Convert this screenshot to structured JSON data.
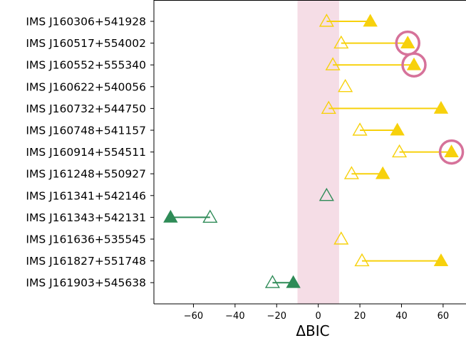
{
  "chart_data": {
    "type": "scatter",
    "title": "",
    "xlabel": "ΔBIC",
    "ylabel": "",
    "xlim": [
      -79,
      71
    ],
    "xticks": [
      -60,
      -40,
      -20,
      0,
      20,
      40,
      60
    ],
    "xtick_labels": [
      "−60",
      "−40",
      "−20",
      "0",
      "20",
      "40",
      "60"
    ],
    "shaded_band": {
      "x_start": -10,
      "x_end": 10,
      "color": "#f5dde6"
    },
    "colors": {
      "yellow": "#f7d10c",
      "green": "#2e8b57",
      "circle": "#d6729a"
    },
    "legend": "none",
    "grid": false,
    "rows": [
      {
        "label": "IMS J160306+541928",
        "open": 4,
        "filled": 25,
        "color": "yellow",
        "circled": false
      },
      {
        "label": "IMS J160517+554002",
        "open": 11,
        "filled": 43,
        "color": "yellow",
        "circled": true
      },
      {
        "label": "IMS J160552+555340",
        "open": 7,
        "filled": 46,
        "color": "yellow",
        "circled": true
      },
      {
        "label": "IMS J160622+540056",
        "open": 13,
        "filled": null,
        "color": "yellow",
        "circled": false
      },
      {
        "label": "IMS J160732+544750",
        "open": 5,
        "filled": 59,
        "color": "yellow",
        "circled": false
      },
      {
        "label": "IMS J160748+541157",
        "open": 20,
        "filled": 38,
        "color": "yellow",
        "circled": false
      },
      {
        "label": "IMS J160914+554511",
        "open": 39,
        "filled": 64,
        "color": "yellow",
        "circled": true
      },
      {
        "label": "IMS J161248+550927",
        "open": 16,
        "filled": 31,
        "color": "yellow",
        "circled": false
      },
      {
        "label": "IMS J161341+542146",
        "open": 4,
        "filled": null,
        "color": "green",
        "circled": false
      },
      {
        "label": "IMS J161343+542131",
        "open": -52,
        "filled": -71,
        "color": "green",
        "circled": false
      },
      {
        "label": "IMS J161636+535545",
        "open": 11,
        "filled": null,
        "color": "yellow",
        "circled": false
      },
      {
        "label": "IMS J161827+551748",
        "open": 21,
        "filled": 59,
        "color": "yellow",
        "circled": false
      },
      {
        "label": "IMS J161903+545638",
        "open": -22,
        "filled": -12,
        "color": "green",
        "circled": false
      }
    ]
  }
}
